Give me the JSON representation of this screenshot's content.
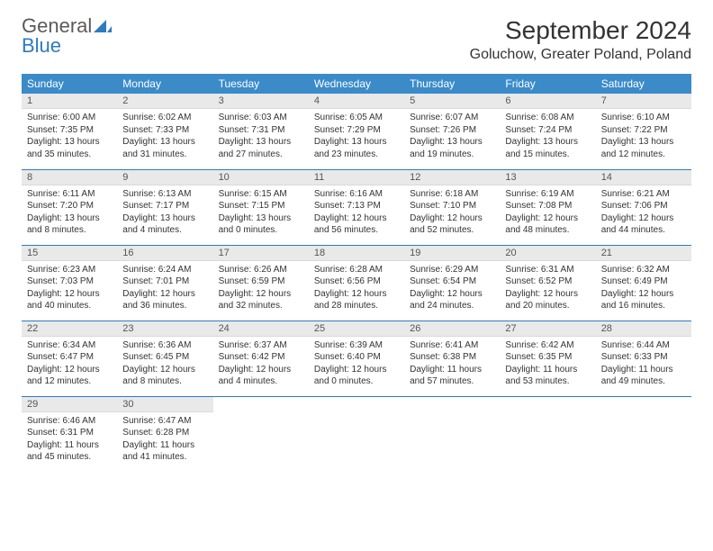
{
  "brand": {
    "name1": "General",
    "name2": "Blue"
  },
  "title": "September 2024",
  "location": "Goluchow, Greater Poland, Poland",
  "colors": {
    "header_bg": "#3b8bc9",
    "header_text": "#ffffff",
    "cell_divider": "#2f7bbf",
    "daynum_bg": "#e9e9e9",
    "text": "#333333",
    "brand_gray": "#5a5a5a",
    "brand_blue": "#2f7bbf"
  },
  "weekdays": [
    "Sunday",
    "Monday",
    "Tuesday",
    "Wednesday",
    "Thursday",
    "Friday",
    "Saturday"
  ],
  "weeks": [
    [
      {
        "n": "1",
        "sunrise": "Sunrise: 6:00 AM",
        "sunset": "Sunset: 7:35 PM",
        "day1": "Daylight: 13 hours",
        "day2": "and 35 minutes."
      },
      {
        "n": "2",
        "sunrise": "Sunrise: 6:02 AM",
        "sunset": "Sunset: 7:33 PM",
        "day1": "Daylight: 13 hours",
        "day2": "and 31 minutes."
      },
      {
        "n": "3",
        "sunrise": "Sunrise: 6:03 AM",
        "sunset": "Sunset: 7:31 PM",
        "day1": "Daylight: 13 hours",
        "day2": "and 27 minutes."
      },
      {
        "n": "4",
        "sunrise": "Sunrise: 6:05 AM",
        "sunset": "Sunset: 7:29 PM",
        "day1": "Daylight: 13 hours",
        "day2": "and 23 minutes."
      },
      {
        "n": "5",
        "sunrise": "Sunrise: 6:07 AM",
        "sunset": "Sunset: 7:26 PM",
        "day1": "Daylight: 13 hours",
        "day2": "and 19 minutes."
      },
      {
        "n": "6",
        "sunrise": "Sunrise: 6:08 AM",
        "sunset": "Sunset: 7:24 PM",
        "day1": "Daylight: 13 hours",
        "day2": "and 15 minutes."
      },
      {
        "n": "7",
        "sunrise": "Sunrise: 6:10 AM",
        "sunset": "Sunset: 7:22 PM",
        "day1": "Daylight: 13 hours",
        "day2": "and 12 minutes."
      }
    ],
    [
      {
        "n": "8",
        "sunrise": "Sunrise: 6:11 AM",
        "sunset": "Sunset: 7:20 PM",
        "day1": "Daylight: 13 hours",
        "day2": "and 8 minutes."
      },
      {
        "n": "9",
        "sunrise": "Sunrise: 6:13 AM",
        "sunset": "Sunset: 7:17 PM",
        "day1": "Daylight: 13 hours",
        "day2": "and 4 minutes."
      },
      {
        "n": "10",
        "sunrise": "Sunrise: 6:15 AM",
        "sunset": "Sunset: 7:15 PM",
        "day1": "Daylight: 13 hours",
        "day2": "and 0 minutes."
      },
      {
        "n": "11",
        "sunrise": "Sunrise: 6:16 AM",
        "sunset": "Sunset: 7:13 PM",
        "day1": "Daylight: 12 hours",
        "day2": "and 56 minutes."
      },
      {
        "n": "12",
        "sunrise": "Sunrise: 6:18 AM",
        "sunset": "Sunset: 7:10 PM",
        "day1": "Daylight: 12 hours",
        "day2": "and 52 minutes."
      },
      {
        "n": "13",
        "sunrise": "Sunrise: 6:19 AM",
        "sunset": "Sunset: 7:08 PM",
        "day1": "Daylight: 12 hours",
        "day2": "and 48 minutes."
      },
      {
        "n": "14",
        "sunrise": "Sunrise: 6:21 AM",
        "sunset": "Sunset: 7:06 PM",
        "day1": "Daylight: 12 hours",
        "day2": "and 44 minutes."
      }
    ],
    [
      {
        "n": "15",
        "sunrise": "Sunrise: 6:23 AM",
        "sunset": "Sunset: 7:03 PM",
        "day1": "Daylight: 12 hours",
        "day2": "and 40 minutes."
      },
      {
        "n": "16",
        "sunrise": "Sunrise: 6:24 AM",
        "sunset": "Sunset: 7:01 PM",
        "day1": "Daylight: 12 hours",
        "day2": "and 36 minutes."
      },
      {
        "n": "17",
        "sunrise": "Sunrise: 6:26 AM",
        "sunset": "Sunset: 6:59 PM",
        "day1": "Daylight: 12 hours",
        "day2": "and 32 minutes."
      },
      {
        "n": "18",
        "sunrise": "Sunrise: 6:28 AM",
        "sunset": "Sunset: 6:56 PM",
        "day1": "Daylight: 12 hours",
        "day2": "and 28 minutes."
      },
      {
        "n": "19",
        "sunrise": "Sunrise: 6:29 AM",
        "sunset": "Sunset: 6:54 PM",
        "day1": "Daylight: 12 hours",
        "day2": "and 24 minutes."
      },
      {
        "n": "20",
        "sunrise": "Sunrise: 6:31 AM",
        "sunset": "Sunset: 6:52 PM",
        "day1": "Daylight: 12 hours",
        "day2": "and 20 minutes."
      },
      {
        "n": "21",
        "sunrise": "Sunrise: 6:32 AM",
        "sunset": "Sunset: 6:49 PM",
        "day1": "Daylight: 12 hours",
        "day2": "and 16 minutes."
      }
    ],
    [
      {
        "n": "22",
        "sunrise": "Sunrise: 6:34 AM",
        "sunset": "Sunset: 6:47 PM",
        "day1": "Daylight: 12 hours",
        "day2": "and 12 minutes."
      },
      {
        "n": "23",
        "sunrise": "Sunrise: 6:36 AM",
        "sunset": "Sunset: 6:45 PM",
        "day1": "Daylight: 12 hours",
        "day2": "and 8 minutes."
      },
      {
        "n": "24",
        "sunrise": "Sunrise: 6:37 AM",
        "sunset": "Sunset: 6:42 PM",
        "day1": "Daylight: 12 hours",
        "day2": "and 4 minutes."
      },
      {
        "n": "25",
        "sunrise": "Sunrise: 6:39 AM",
        "sunset": "Sunset: 6:40 PM",
        "day1": "Daylight: 12 hours",
        "day2": "and 0 minutes."
      },
      {
        "n": "26",
        "sunrise": "Sunrise: 6:41 AM",
        "sunset": "Sunset: 6:38 PM",
        "day1": "Daylight: 11 hours",
        "day2": "and 57 minutes."
      },
      {
        "n": "27",
        "sunrise": "Sunrise: 6:42 AM",
        "sunset": "Sunset: 6:35 PM",
        "day1": "Daylight: 11 hours",
        "day2": "and 53 minutes."
      },
      {
        "n": "28",
        "sunrise": "Sunrise: 6:44 AM",
        "sunset": "Sunset: 6:33 PM",
        "day1": "Daylight: 11 hours",
        "day2": "and 49 minutes."
      }
    ],
    [
      {
        "n": "29",
        "sunrise": "Sunrise: 6:46 AM",
        "sunset": "Sunset: 6:31 PM",
        "day1": "Daylight: 11 hours",
        "day2": "and 45 minutes."
      },
      {
        "n": "30",
        "sunrise": "Sunrise: 6:47 AM",
        "sunset": "Sunset: 6:28 PM",
        "day1": "Daylight: 11 hours",
        "day2": "and 41 minutes."
      },
      {
        "empty": true
      },
      {
        "empty": true
      },
      {
        "empty": true
      },
      {
        "empty": true
      },
      {
        "empty": true
      }
    ]
  ]
}
